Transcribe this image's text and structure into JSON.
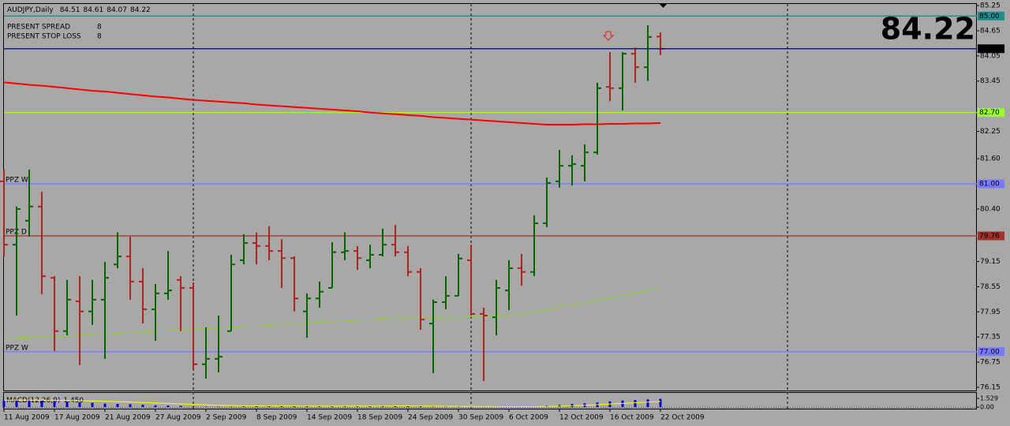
{
  "chart_data": {
    "type": "ohlc",
    "symbol_title": "AUDJPY,Daily",
    "categories": [
      "11 Aug 2009",
      null,
      null,
      null,
      "17 Aug 2009",
      null,
      null,
      null,
      "21 Aug 2009",
      null,
      null,
      null,
      "27 Aug 2009",
      null,
      null,
      null,
      "2 Sep 2009",
      null,
      null,
      null,
      "8 Sep 2009",
      null,
      null,
      null,
      "14 Sep 2009",
      null,
      null,
      null,
      "18 Sep 2009",
      null,
      null,
      null,
      "24 Sep 2009",
      null,
      null,
      null,
      "30 Sep 2009",
      null,
      null,
      null,
      "6 Oct 2009",
      null,
      null,
      null,
      "12 Oct 2009",
      null,
      null,
      null,
      "16 Oct 2009",
      null,
      null,
      null,
      "22 Oct 2009"
    ],
    "open": [
      81.06,
      79.55,
      80.12,
      80.46,
      78.76,
      77.49,
      78.2,
      77.96,
      78.24,
      79.08,
      79.27,
      78.67,
      78.01,
      78.39,
      78.71,
      78.52,
      76.7,
      76.83,
      77.49,
      79.18,
      79.59,
      79.52,
      79.4,
      79.23,
      77.96,
      78.27,
      78.52,
      79.37,
      79.4,
      79.18,
      79.31,
      79.55,
      79.37,
      78.9,
      77.67,
      78.18,
      78.33,
      79.18,
      77.9,
      77.82,
      78.46,
      78.99,
      78.9,
      80.06,
      81.06,
      81.43,
      81.43,
      81.75,
      83.31,
      83.28,
      84.1,
      83.78,
      84.51
    ],
    "high": [
      81.34,
      80.46,
      81.34,
      80.81,
      78.8,
      78.71,
      78.8,
      78.71,
      79.14,
      79.84,
      79.74,
      78.99,
      78.61,
      79.4,
      78.8,
      78.65,
      77.58,
      77.86,
      79.31,
      79.8,
      79.84,
      79.99,
      79.68,
      79.27,
      78.39,
      78.67,
      79.61,
      79.84,
      79.52,
      79.55,
      79.93,
      80.02,
      79.52,
      78.99,
      78.24,
      78.8,
      79.33,
      79.55,
      78.05,
      78.71,
      79.18,
      79.33,
      80.25,
      81.15,
      81.81,
      81.68,
      81.94,
      83.41,
      84.14,
      84.14,
      84.25,
      84.78,
      84.61
    ],
    "low": [
      79.27,
      77.86,
      79.74,
      78.37,
      77.02,
      77.39,
      76.68,
      77.64,
      76.83,
      78.99,
      78.24,
      77.67,
      77.26,
      78.24,
      77.49,
      76.58,
      76.36,
      76.51,
      77.49,
      79.08,
      79.08,
      79.18,
      78.52,
      77.96,
      77.33,
      78.05,
      78.52,
      79.18,
      78.95,
      78.99,
      79.27,
      79.27,
      78.8,
      77.52,
      76.49,
      78.01,
      78.33,
      77.86,
      76.3,
      77.39,
      77.99,
      78.57,
      78.8,
      79.97,
      80.91,
      80.96,
      81.06,
      81.7,
      82.97,
      82.75,
      83.41,
      83.45,
      84.07
    ],
    "close": [
      79.55,
      80.4,
      80.46,
      78.8,
      77.49,
      78.24,
      77.96,
      78.24,
      78.76,
      79.27,
      78.67,
      78.01,
      78.39,
      78.46,
      78.52,
      76.7,
      76.83,
      76.88,
      79.08,
      79.59,
      79.52,
      79.4,
      79.23,
      78.27,
      78.27,
      78.43,
      79.37,
      79.4,
      79.23,
      79.31,
      79.55,
      79.37,
      78.9,
      77.77,
      78.18,
      78.33,
      79.22,
      77.9,
      77.86,
      78.52,
      78.99,
      78.9,
      80.06,
      81.02,
      81.43,
      81.47,
      81.75,
      83.28,
      83.28,
      84.1,
      83.78,
      84.5,
      84.22
    ],
    "up_color": "#006400",
    "down_color": "#b22222",
    "price_line_color": "#000080",
    "price_color": "#dc143c",
    "ylim": [
      76.15,
      85.25
    ],
    "yticks": [
      85.25,
      84.65,
      84.05,
      83.45,
      82.25,
      {
        "value": 81.6,
        "label": "81.60"
      },
      {
        "value": 80.4,
        "label": "80.40"
      },
      79.15,
      78.55,
      77.95,
      77.35,
      76.75,
      76.15
    ],
    "overlays": [
      {
        "color": "#ff0000",
        "values": [
          83.42,
          83.39,
          83.36,
          83.34,
          83.31,
          83.28,
          83.25,
          83.22,
          83.2,
          83.17,
          83.14,
          83.11,
          83.08,
          83.06,
          83.03,
          83.0,
          82.98,
          82.96,
          82.94,
          82.92,
          82.89,
          82.87,
          82.85,
          82.83,
          82.81,
          82.79,
          82.77,
          82.75,
          82.73,
          82.7,
          82.68,
          82.66,
          82.64,
          82.62,
          82.59,
          82.57,
          82.55,
          82.53,
          82.51,
          82.49,
          82.47,
          82.45,
          82.43,
          82.41,
          82.41,
          82.41,
          82.42,
          82.42,
          82.43,
          82.43,
          82.44,
          82.44,
          82.45
        ]
      },
      {
        "color": "#9acd32",
        "values": [
          77.3,
          77.32,
          77.33,
          77.35,
          77.36,
          77.38,
          77.39,
          77.41,
          77.42,
          77.44,
          77.46,
          77.47,
          77.49,
          77.5,
          77.52,
          77.53,
          77.55,
          77.56,
          77.58,
          77.6,
          77.61,
          77.63,
          77.65,
          77.66,
          77.68,
          77.7,
          77.71,
          77.73,
          77.75,
          77.76,
          77.78,
          77.8,
          77.8,
          77.81,
          77.81,
          77.82,
          77.83,
          77.84,
          77.84,
          77.85,
          77.86,
          77.9,
          77.95,
          77.99,
          78.05,
          78.11,
          78.17,
          78.23,
          78.28,
          78.34,
          78.4,
          78.46,
          78.52
        ]
      }
    ],
    "levels": [
      {
        "value": 85,
        "label": "85.00",
        "color": "#1e8c8c"
      },
      {
        "value": 82.7,
        "label": "82.70",
        "color": "#9aff2a"
      },
      {
        "value": 81,
        "label": "81.00",
        "color": "#7a7aff",
        "name": "PPZ W"
      },
      {
        "value": 79.76,
        "label": "79.76",
        "color": "#a3302a",
        "name": "PPZ D"
      },
      {
        "value": 77,
        "label": "77.00",
        "color": "#7a7aff",
        "name": "PPZ W"
      }
    ],
    "info": [
      {
        "label": "PRESENT SPREAD",
        "value": 8
      },
      {
        "label": "PRESENT STOP LOSS",
        "value": 8
      }
    ],
    "macd": {
      "title": "MACD(12,26,9)",
      "ylim": [
        -0.14,
        2.64
      ],
      "yticks": [
        1.529,
        {
          "value": 0,
          "label": "0.00"
        }
      ],
      "histogram": {
        "color": "#0000cd",
        "values": [
          1.3,
          1.25,
          1.2,
          1.15,
          1.05,
          0.95,
          0.85,
          0.75,
          0.6,
          0.55,
          0.5,
          0.4,
          0.3,
          0.25,
          0.2,
          0.1,
          0.05,
          0.05,
          0.05,
          0.1,
          0.15,
          0.2,
          0.2,
          0.2,
          0.15,
          0.15,
          0.15,
          0.2,
          0.2,
          0.2,
          0.25,
          0.25,
          0.2,
          0.15,
          0.05,
          0.05,
          0.05,
          0.05,
          0.05,
          0.05,
          0.05,
          0.05,
          0.1,
          0.25,
          0.4,
          0.55,
          0.65,
          0.8,
          1.0,
          1.15,
          1.25,
          1.35,
          1.45
        ],
        "value_labels": [
          null,
          null,
          null,
          null,
          null,
          null,
          null,
          null,
          null,
          null,
          null,
          null,
          null,
          null,
          null,
          null,
          null,
          null,
          null,
          null,
          null,
          null,
          null,
          null,
          null,
          null,
          null,
          null,
          null,
          null,
          null,
          null,
          null,
          null,
          null,
          null,
          null,
          null,
          null,
          null,
          null,
          null,
          null,
          null,
          null,
          null,
          null,
          null,
          null,
          null,
          null,
          null,
          "1.450"
        ]
      },
      "signal": {
        "color": "#ffff00",
        "values": [
          1.2,
          1.22,
          1.22,
          1.21,
          1.19,
          1.16,
          1.12,
          1.08,
          1.02,
          0.95,
          0.88,
          0.8,
          0.72,
          0.64,
          0.56,
          0.47,
          0.39,
          0.32,
          0.26,
          0.23,
          0.21,
          0.21,
          0.21,
          0.2,
          0.19,
          0.18,
          0.17,
          0.17,
          0.18,
          0.18,
          0.19,
          0.2,
          0.2,
          0.19,
          0.16,
          0.14,
          0.12,
          0.1,
          0.09,
          0.08,
          0.07,
          0.06,
          0.07,
          0.1,
          0.16,
          0.24,
          0.32,
          0.42,
          0.53,
          0.65,
          0.76,
          0.87,
          0.982
        ]
      }
    }
  }
}
